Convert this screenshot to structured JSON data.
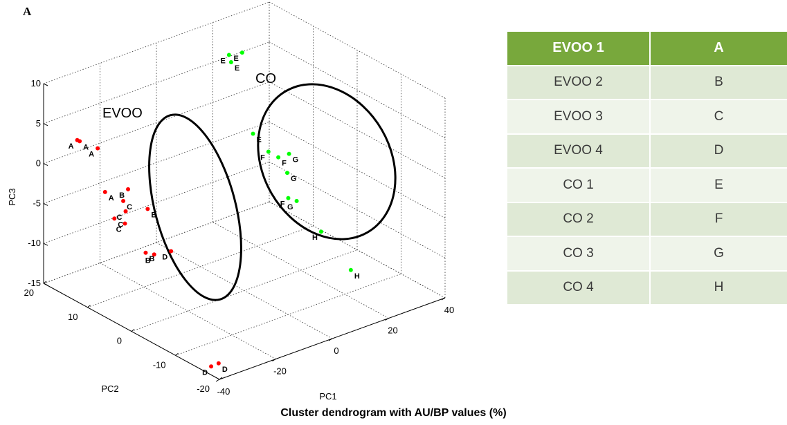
{
  "panel_label": "A",
  "caption": "Cluster dendrogram with AU/BP values (%)",
  "legend_table": {
    "header": {
      "sample": "EVOO 1",
      "code": "A"
    },
    "rows": [
      {
        "sample": "EVOO 2",
        "code": "B"
      },
      {
        "sample": "EVOO 3",
        "code": "C"
      },
      {
        "sample": "EVOO 4",
        "code": "D"
      },
      {
        "sample": "CO 1",
        "code": "E"
      },
      {
        "sample": "CO 2",
        "code": "F"
      },
      {
        "sample": "CO 3",
        "code": "G"
      },
      {
        "sample": "CO 4",
        "code": "H"
      }
    ],
    "colors": {
      "header": "#78a83c",
      "row_dark": "#dfe9d5",
      "row_light": "#eff4ea"
    }
  },
  "chart_data": {
    "type": "scatter",
    "projection": "3d",
    "xlabel": "PC1",
    "ylabel": "PC2",
    "zlabel": "PC3",
    "xlim": [
      -40,
      40
    ],
    "ylim": [
      -20,
      20
    ],
    "zlim": [
      -15,
      10
    ],
    "x_ticks": [
      -40,
      -20,
      0,
      20,
      40
    ],
    "y_ticks": [
      -20,
      -10,
      0,
      10,
      20
    ],
    "z_ticks": [
      -15,
      -10,
      -5,
      0,
      5,
      10
    ],
    "grid": true,
    "groups": [
      {
        "label": "EVOO",
        "color": "#ff0000",
        "codes": [
          "A",
          "B",
          "C",
          "D"
        ]
      },
      {
        "label": "CO",
        "color": "#00ff00",
        "codes": [
          "E",
          "F",
          "G",
          "H"
        ]
      }
    ],
    "points": [
      {
        "label": "A",
        "group": "EVOO",
        "x": -31.5,
        "y": 17.8,
        "z": 2.5
      },
      {
        "label": "A",
        "group": "EVOO",
        "x": -31.1,
        "y": 17.5,
        "z": 2.4
      },
      {
        "label": "A",
        "group": "EVOO",
        "x": -26.6,
        "y": 16.3,
        "z": 1.3
      },
      {
        "label": "A",
        "group": "EVOO",
        "x": -29.9,
        "y": 12.5,
        "z": -2.6
      },
      {
        "label": "B",
        "group": "EVOO",
        "x": -23.3,
        "y": 11.5,
        "z": -2.8
      },
      {
        "label": "B",
        "group": "EVOO",
        "x": -19.0,
        "y": 9.8,
        "z": -5.3
      },
      {
        "label": "B",
        "group": "EVOO",
        "x": -24.8,
        "y": 4.6,
        "z": -8.7
      },
      {
        "label": "B",
        "group": "EVOO",
        "x": -27.5,
        "y": 4.8,
        "z": -8.2
      },
      {
        "label": "C",
        "group": "EVOO",
        "x": -26.5,
        "y": 10.0,
        "z": -4.7
      },
      {
        "label": "C",
        "group": "EVOO",
        "x": -26.1,
        "y": 10.8,
        "z": -3.7
      },
      {
        "label": "C",
        "group": "EVOO",
        "x": -28.3,
        "y": 9.0,
        "z": -5.7
      },
      {
        "label": "C",
        "group": "EVOO",
        "x": -30.8,
        "y": 9.8,
        "z": -5.0
      },
      {
        "label": "D",
        "group": "EVOO",
        "x": -20.2,
        "y": 3.7,
        "z": -8.6
      },
      {
        "label": "D",
        "group": "EVOO",
        "x": -23.3,
        "y": -9.1,
        "z": -18.4
      },
      {
        "label": "D",
        "group": "EVOO",
        "x": -26.1,
        "y": -9.2,
        "z": -18.4
      },
      {
        "label": "D",
        "group": "EVOO",
        "x": -25.5,
        "y": -16.3,
        "z": -23.5
      },
      {
        "label": "E",
        "group": "CO",
        "x": 25.1,
        "y": 19.6,
        "z": 5.4
      },
      {
        "label": "E",
        "group": "CO",
        "x": 24.6,
        "y": 18.8,
        "z": 4.8
      },
      {
        "label": "E",
        "group": "CO",
        "x": 30.7,
        "y": 20.2,
        "z": 4.8
      },
      {
        "label": "E",
        "group": "CO",
        "x": 18.5,
        "y": 9.9,
        "z": -0.7
      },
      {
        "label": "F",
        "group": "CO",
        "x": 20.7,
        "y": 7.8,
        "z": -2.6
      },
      {
        "label": "F",
        "group": "CO",
        "x": 22.8,
        "y": 6.9,
        "z": -3.3
      },
      {
        "label": "F",
        "group": "CO",
        "x": 19.0,
        "y": 2.2,
        "z": -6.5
      },
      {
        "label": "G",
        "group": "CO",
        "x": 23.0,
        "y": 5.0,
        "z": -4.7
      },
      {
        "label": "G",
        "group": "CO",
        "x": 21.2,
        "y": 1.7,
        "z": -7.0
      },
      {
        "label": "G",
        "group": "CO",
        "x": 28.0,
        "y": 7.8,
        "z": -3.8
      },
      {
        "label": "H",
        "group": "CO",
        "x": 23.8,
        "y": -2.2,
        "z": -10.0
      },
      {
        "label": "H",
        "group": "CO",
        "x": 27.0,
        "y": -6.9,
        "z": -13.8
      }
    ]
  }
}
